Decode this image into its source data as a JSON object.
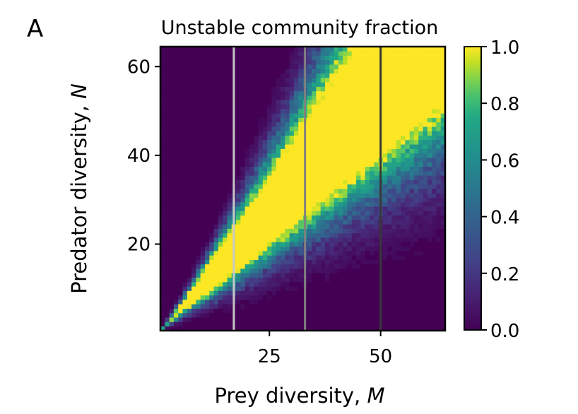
{
  "panel_label": "A",
  "chart_data": {
    "type": "heatmap",
    "title": "Unstable community fraction",
    "xlabel": "Prey diversity, ",
    "xlabel_var": "M",
    "ylabel": "Predator diversity, ",
    "ylabel_var": "N",
    "xlim": [
      0.5,
      64.5
    ],
    "ylim": [
      0.5,
      64.5
    ],
    "grid_size": [
      64,
      64
    ],
    "xticks": [
      25,
      50
    ],
    "yticks": [
      20,
      40,
      60
    ],
    "colormap": "viridis",
    "colorbar": {
      "range": [
        0.0,
        1.0
      ],
      "ticks": [
        0.0,
        0.2,
        0.4,
        0.6,
        0.8,
        1.0
      ],
      "tick_labels": [
        "0.0",
        "0.2",
        "0.4",
        "0.6",
        "0.8",
        "1.0"
      ]
    },
    "value_model": {
      "description": "fraction peaks along N ≈ M band, saturating to 1.0 for larger M",
      "center_ratio_N_over_M": 1.05,
      "width_below": 0.25,
      "width_above": 0.27,
      "gain": 1.7,
      "ramp_M": 18,
      "noise": 0.12
    },
    "vertical_lines": [
      {
        "M": 17,
        "color": "#c8c8c8"
      },
      {
        "M": 33,
        "color": "#808080"
      },
      {
        "M": 50,
        "color": "#383838"
      }
    ]
  }
}
